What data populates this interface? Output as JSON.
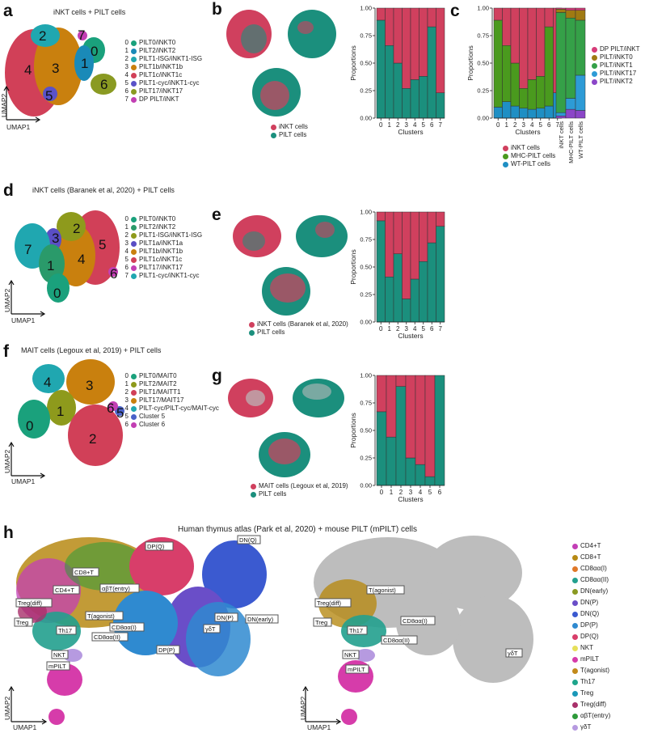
{
  "colors": {
    "inkt": "#d0405e",
    "pilt": "#1b8f7d",
    "mhc": "#4a9a1e",
    "wt": "#1f8fc4",
    "dp": "#d63c79",
    "t0": "#a07a12",
    "t1": "#35a048",
    "t17": "#2d9bd6",
    "t2": "#8b46c8"
  },
  "panel_a": {
    "letter": "a",
    "title": "iNKT cells + PILT cells",
    "legend": [
      {
        "num": "0",
        "label": "PILT0/iNKT0",
        "color": "#1aa17c"
      },
      {
        "num": "1",
        "label": "PILT2/iNKT2",
        "color": "#1a8ab8"
      },
      {
        "num": "2",
        "label": "PILT1-ISG/iNKT1-ISG",
        "color": "#20a7b0"
      },
      {
        "num": "3",
        "label": "PILT1b/iNKT1b",
        "color": "#c9800e"
      },
      {
        "num": "4",
        "label": "PILT1c/iNKT1c",
        "color": "#d14058"
      },
      {
        "num": "5",
        "label": "PILT1-cyc/iNKT1-cyc",
        "color": "#5a52c8"
      },
      {
        "num": "6",
        "label": "PILT17/iNKT17",
        "color": "#8a9a22"
      },
      {
        "num": "7",
        "label": "DP PILT/iNKT",
        "color": "#c23fb3"
      }
    ],
    "cluster_labels": [
      "0",
      "1",
      "2",
      "3",
      "4",
      "5",
      "6",
      "7"
    ],
    "xaxis": "UMAP1",
    "yaxis": "UMAP2"
  },
  "panel_b": {
    "letter": "b",
    "legend": [
      {
        "label": "iNKT cells",
        "color": "#d0405e"
      },
      {
        "label": "PILT cells",
        "color": "#1b8f7d"
      }
    ]
  },
  "panel_c": {
    "letter": "c",
    "legend_bottom": [
      {
        "label": "iNKT cells",
        "color": "#d0405e"
      },
      {
        "label": "MHC-PILT cells",
        "color": "#4a9a1e"
      },
      {
        "label": "WT-PILT cells",
        "color": "#1f8fc4"
      }
    ],
    "legend_right": [
      {
        "label": "DP PILT/iNKT",
        "color": "#d63c79"
      },
      {
        "label": "PILT/iNKT0",
        "color": "#a07a12"
      },
      {
        "label": "PILT/iNKT1",
        "color": "#35a048"
      },
      {
        "label": "PILT/iNKT17",
        "color": "#2d9bd6"
      },
      {
        "label": "PILT/iNKT2",
        "color": "#8b46c8"
      }
    ],
    "side_categories": [
      "iNKT cells",
      "MHC-PILT cells",
      "WT-PILT cells"
    ]
  },
  "panel_d": {
    "letter": "d",
    "title": "iNKT cells (Baranek et al, 2020) + PILT cells",
    "legend": [
      {
        "num": "0",
        "label": "PILT0/iNKT0",
        "color": "#1aa17c"
      },
      {
        "num": "1",
        "label": "PILT2/iNKT2",
        "color": "#2a9a6a"
      },
      {
        "num": "2",
        "label": "PILT1-ISG/iNKT1-ISG",
        "color": "#8e9a1c"
      },
      {
        "num": "3",
        "label": "PILT1a/iNKT1a",
        "color": "#5a4ec4"
      },
      {
        "num": "4",
        "label": "PILT1b/iNKT1b",
        "color": "#c9800e"
      },
      {
        "num": "5",
        "label": "PILT1c/iNKT1c",
        "color": "#d14058"
      },
      {
        "num": "6",
        "label": "PILT17/iNKT17",
        "color": "#c23fb3"
      },
      {
        "num": "7",
        "label": "PILT1-cyc/iNKT1-cyc",
        "color": "#20a7b0"
      }
    ],
    "cluster_labels": [
      "0",
      "1",
      "2",
      "3",
      "4",
      "5",
      "6",
      "7"
    ],
    "xaxis": "UMAP1",
    "yaxis": "UMAP2"
  },
  "panel_e": {
    "letter": "e",
    "legend": [
      {
        "label": "iNKT cells (Baranek et al, 2020)",
        "color": "#d0405e"
      },
      {
        "label": "PILT cells",
        "color": "#1b8f7d"
      }
    ]
  },
  "panel_f": {
    "letter": "f",
    "title": "MAIT cells (Legoux et al, 2019) + PILT cells",
    "legend": [
      {
        "num": "0",
        "label": "PILT0/MAIT0",
        "color": "#1aa17c"
      },
      {
        "num": "1",
        "label": "PILT2/MAIT2",
        "color": "#8e9a1c"
      },
      {
        "num": "2",
        "label": "PILT1/MAITT1",
        "color": "#d14058"
      },
      {
        "num": "3",
        "label": "PILT17/MAIT17",
        "color": "#c9800e"
      },
      {
        "num": "4",
        "label": "PILT-cyc/PILT-cyc/MAIT-cyc",
        "color": "#20a7b0"
      },
      {
        "num": "5",
        "label": "Cluster 5",
        "color": "#4a62c8"
      },
      {
        "num": "6",
        "label": "Cluster 6",
        "color": "#c23fb3"
      }
    ],
    "cluster_labels": [
      "0",
      "1",
      "2",
      "3",
      "4",
      "5",
      "6"
    ],
    "xaxis": "UMAP1",
    "yaxis": "UMAP2"
  },
  "panel_g": {
    "letter": "g",
    "legend": [
      {
        "label": "MAIT cells (Legoux et al, 2019)",
        "color": "#d0405e"
      },
      {
        "label": "PILT cells",
        "color": "#1b8f7d"
      }
    ]
  },
  "panel_h": {
    "letter": "h",
    "title": "Human thymus atlas (Park et al, 2020) + mouse PILT (mPILT) cells",
    "xaxis": "UMAP1",
    "yaxis": "UMAP2",
    "legend": [
      {
        "label": "CD4+T",
        "color": "#c33fb6"
      },
      {
        "label": "CD8+T",
        "color": "#b78a14"
      },
      {
        "label": "CD8αα(I)",
        "color": "#e07828"
      },
      {
        "label": "CD8αα(II)",
        "color": "#22a08e"
      },
      {
        "label": "DN(early)",
        "color": "#8a9a22"
      },
      {
        "label": "DN(P)",
        "color": "#6a4ec8"
      },
      {
        "label": "DN(Q)",
        "color": "#3b5ad0"
      },
      {
        "label": "DP(P)",
        "color": "#2f8ad0"
      },
      {
        "label": "DP(Q)",
        "color": "#d83e6a"
      },
      {
        "label": "NKT",
        "color": "#e6e05a"
      },
      {
        "label": "mPILT",
        "color": "#d63caa"
      },
      {
        "label": "T(agonist)",
        "color": "#c28a1a"
      },
      {
        "label": "Th17",
        "color": "#1ea58c"
      },
      {
        "label": "Treg",
        "color": "#1a98b8"
      },
      {
        "label": "Treg(diff)",
        "color": "#a8306a"
      },
      {
        "label": "αβT(entry)",
        "color": "#2e9a3a"
      },
      {
        "label": "γδT",
        "color": "#b69ae0"
      }
    ],
    "left_labels": [
      "DP(Q)",
      "DN(Q)",
      "CD8+T",
      "αβT(entry)",
      "CD4+T",
      "Treg(diff)",
      "T(agonist)",
      "Treg",
      "Th17",
      "CD8αα(I)",
      "CD8αα(II)",
      "DN(P)",
      "DN(early)",
      "γδT",
      "DP(P)",
      "NKT",
      "mPILT"
    ],
    "right_labels": [
      "Treg(diff)",
      "T(agonist)",
      "Treg",
      "Th17",
      "CD8αα(I)",
      "CD8αα(II)",
      "γδT",
      "NKT",
      "mPILT"
    ]
  },
  "chart_data": [
    {
      "type": "bar",
      "panel": "b",
      "stacked": true,
      "categories": [
        "0",
        "1",
        "2",
        "3",
        "4",
        "5",
        "6",
        "7"
      ],
      "series": [
        {
          "name": "PILT cells",
          "values": [
            0.89,
            0.66,
            0.5,
            0.27,
            0.35,
            0.38,
            0.83,
            0.23
          ]
        },
        {
          "name": "iNKT cells",
          "values": [
            0.11,
            0.34,
            0.5,
            0.73,
            0.65,
            0.62,
            0.17,
            0.77
          ]
        }
      ],
      "xlabel": "Clusters",
      "ylabel": "Proportions",
      "ylim": [
        0,
        1
      ],
      "yticks": [
        "0.00",
        "0.25",
        "0.50",
        "0.75",
        "1.00"
      ]
    },
    {
      "type": "bar",
      "panel": "c",
      "stacked": true,
      "categories": [
        "0",
        "1",
        "2",
        "3",
        "4",
        "5",
        "6",
        "7"
      ],
      "series": [
        {
          "name": "WT-PILT cells",
          "values": [
            0.1,
            0.15,
            0.11,
            0.09,
            0.08,
            0.09,
            0.11,
            0.23
          ]
        },
        {
          "name": "MHC-PILT cells",
          "values": [
            0.79,
            0.51,
            0.39,
            0.18,
            0.27,
            0.29,
            0.72,
            0.0
          ]
        },
        {
          "name": "iNKT cells",
          "values": [
            0.11,
            0.34,
            0.5,
            0.73,
            0.65,
            0.62,
            0.17,
            0.77
          ]
        }
      ],
      "xlabel": "Clusters",
      "ylabel": "Proportions",
      "ylim": [
        0,
        1
      ],
      "yticks": [
        "0.00",
        "0.25",
        "0.50",
        "0.75",
        "1.00"
      ]
    },
    {
      "type": "bar",
      "panel": "c-side",
      "stacked": true,
      "categories": [
        "iNKT cells",
        "MHC-PILT cells",
        "WT-PILT cells"
      ],
      "series": [
        {
          "name": "PILT/iNKT2",
          "values": [
            0.02,
            0.08,
            0.07
          ]
        },
        {
          "name": "PILT/iNKT17",
          "values": [
            0.03,
            0.1,
            0.32
          ]
        },
        {
          "name": "PILT/iNKT1",
          "values": [
            0.91,
            0.73,
            0.5
          ]
        },
        {
          "name": "PILT/iNKT0",
          "values": [
            0.03,
            0.07,
            0.09
          ]
        },
        {
          "name": "DP PILT/iNKT",
          "values": [
            0.01,
            0.02,
            0.02
          ]
        }
      ]
    },
    {
      "type": "bar",
      "panel": "e",
      "stacked": true,
      "categories": [
        "0",
        "1",
        "2",
        "3",
        "4",
        "5",
        "6",
        "7"
      ],
      "series": [
        {
          "name": "PILT cells",
          "values": [
            0.92,
            0.41,
            0.62,
            0.21,
            0.39,
            0.55,
            0.72,
            0.87
          ]
        },
        {
          "name": "iNKT cells (Baranek et al, 2020)",
          "values": [
            0.08,
            0.59,
            0.38,
            0.79,
            0.61,
            0.45,
            0.28,
            0.13
          ]
        }
      ],
      "xlabel": "Clusters",
      "ylabel": "Proportions",
      "ylim": [
        0,
        1
      ],
      "yticks": [
        "0.00",
        "0.25",
        "0.50",
        "0.75",
        "1.00"
      ]
    },
    {
      "type": "bar",
      "panel": "g",
      "stacked": true,
      "categories": [
        "0",
        "1",
        "2",
        "3",
        "4",
        "5",
        "6"
      ],
      "series": [
        {
          "name": "PILT cells",
          "values": [
            0.67,
            0.44,
            0.9,
            0.25,
            0.19,
            0.08,
            1.0
          ]
        },
        {
          "name": "MAIT cells (Legoux et al, 2019)",
          "values": [
            0.33,
            0.56,
            0.1,
            0.75,
            0.81,
            0.92,
            0.0
          ]
        }
      ],
      "xlabel": "Clusters",
      "ylabel": "Proportions",
      "ylim": [
        0,
        1
      ],
      "yticks": [
        "0.00",
        "0.25",
        "0.50",
        "0.75",
        "1.00"
      ]
    }
  ]
}
